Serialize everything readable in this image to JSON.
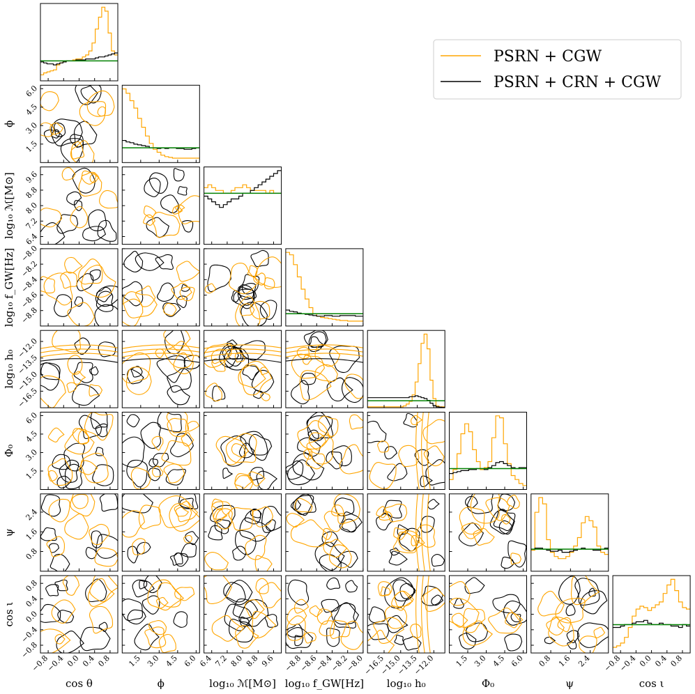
{
  "chart_data": {
    "type": "corner",
    "title": "",
    "legend": {
      "placement": "top-right",
      "entries": [
        {
          "label": "PSRN + CGW",
          "color": "#ffa500"
        },
        {
          "label": "PSRN + CRN + CGW",
          "color": "#000000"
        }
      ]
    },
    "prior_color": "#008000",
    "grid": false,
    "parameters": [
      {
        "key": "costheta",
        "label": "cos θ",
        "range": [
          -1.0,
          1.0
        ],
        "ticks": [
          "−0.8",
          "−0.4",
          "0.0",
          "0.4",
          "0.8"
        ],
        "tickvals": [
          -0.8,
          -0.4,
          0.0,
          0.4,
          0.8
        ]
      },
      {
        "key": "phi",
        "label": "ϕ",
        "range": [
          0.0,
          6.28
        ],
        "ticks": [
          "1.5",
          "3.0",
          "4.5",
          "6.0"
        ],
        "tickvals": [
          1.5,
          3.0,
          4.5,
          6.0
        ]
      },
      {
        "key": "logM",
        "label": "log₁₀ ℳ[M⊙]",
        "range": [
          6.0,
          10.0
        ],
        "ticks": [
          "6.4",
          "7.2",
          "8.0",
          "8.8",
          "9.6"
        ],
        "tickvals": [
          6.4,
          7.2,
          8.0,
          8.8,
          9.6
        ]
      },
      {
        "key": "logf",
        "label": "log₁₀ f_GW[Hz]",
        "range": [
          -9.0,
          -8.0
        ],
        "ticks": [
          "−8.8",
          "−8.6",
          "−8.4",
          "−8.2",
          "−8.0"
        ],
        "tickvals": [
          -8.8,
          -8.6,
          -8.4,
          -8.2,
          -8.0
        ]
      },
      {
        "key": "logh",
        "label": "log₁₀ h₀",
        "range": [
          -18.0,
          -11.0
        ],
        "ticks": [
          "−16.5",
          "−15.0",
          "−13.5",
          "−12.0"
        ],
        "tickvals": [
          -16.5,
          -15.0,
          -13.5,
          -12.0
        ]
      },
      {
        "key": "Phi0",
        "label": "Φ₀",
        "range": [
          0.0,
          6.28
        ],
        "ticks": [
          "1.5",
          "3.0",
          "4.5",
          "6.0"
        ],
        "tickvals": [
          1.5,
          3.0,
          4.5,
          6.0
        ]
      },
      {
        "key": "psi",
        "label": "ψ",
        "range": [
          0.0,
          3.14
        ],
        "ticks": [
          "0.8",
          "1.6",
          "2.4"
        ],
        "tickvals": [
          0.8,
          1.6,
          2.4
        ]
      },
      {
        "key": "cosiota",
        "label": "cos ι",
        "range": [
          -1.0,
          1.0
        ],
        "ticks": [
          "−0.8",
          "−0.4",
          "0.0",
          "0.4",
          "0.8"
        ],
        "tickvals": [
          -0.8,
          -0.4,
          0.0,
          0.4,
          0.8
        ]
      }
    ],
    "histograms": [
      {
        "param": "costheta",
        "orange": [
          0.3,
          0.4,
          0.45,
          0.5,
          0.55,
          0.8,
          0.9,
          0.95,
          1.0,
          1.0,
          1.05,
          1.1,
          1.1,
          1.2,
          1.3,
          1.5,
          1.9,
          2.6,
          3.2,
          3.7,
          3.5,
          2.4,
          1.5,
          1.3
        ],
        "black": [
          0.95,
          0.9,
          0.85,
          0.85,
          0.8,
          0.85,
          0.9,
          0.95,
          1.0,
          1.0,
          1.0,
          1.05,
          1.05,
          1.05,
          1.1,
          1.1,
          1.1,
          1.15,
          1.2,
          1.2,
          1.25,
          1.3,
          1.35,
          1.4
        ],
        "prior": 1.0
      },
      {
        "param": "phi",
        "orange": [
          5.0,
          4.7,
          4.2,
          3.7,
          3.0,
          2.4,
          1.8,
          1.3,
          0.9,
          0.7,
          0.5,
          0.4,
          0.35,
          0.3,
          0.3,
          0.3,
          0.3,
          0.3,
          0.3,
          0.3
        ],
        "black": [
          1.5,
          1.4,
          1.35,
          1.25,
          1.2,
          1.15,
          1.1,
          1.0,
          1.0,
          0.95,
          1.0,
          0.95,
          1.0,
          1.0,
          0.95,
          0.95,
          0.9,
          0.9,
          0.95,
          1.0
        ],
        "prior": 1.0
      },
      {
        "param": "logM",
        "orange": [
          1.0,
          1.05,
          1.0,
          0.95,
          0.95,
          0.9,
          0.9,
          0.95,
          1.0,
          1.0,
          1.05,
          1.0,
          0.95,
          0.95,
          0.95,
          0.95,
          0.9,
          0.95,
          0.9,
          0.9
        ],
        "black": [
          0.85,
          0.8,
          0.75,
          0.7,
          0.65,
          0.7,
          0.75,
          0.8,
          0.8,
          0.85,
          0.9,
          0.9,
          0.95,
          1.0,
          1.05,
          1.1,
          1.15,
          1.2,
          1.25,
          1.3
        ],
        "prior": 0.9
      },
      {
        "param": "logf",
        "orange": [
          6.0,
          5.8,
          5.0,
          4.0,
          3.0,
          2.2,
          1.5,
          1.0,
          0.8,
          0.7,
          0.65,
          0.6,
          0.55,
          0.5,
          0.45,
          0.45,
          0.4,
          0.4,
          0.4,
          0.4
        ],
        "black": [
          1.3,
          1.2,
          1.15,
          1.05,
          1.0,
          0.95,
          0.9,
          0.85,
          0.8,
          0.8,
          0.85,
          0.85,
          0.8,
          0.8,
          0.85,
          0.85,
          0.85,
          0.85,
          0.8,
          0.8
        ],
        "prior": 1.0
      },
      {
        "param": "logh",
        "orange": [
          0.05,
          0.05,
          0.05,
          0.05,
          0.05,
          0.05,
          0.05,
          0.05,
          0.05,
          0.05,
          0.05,
          0.05,
          0.1,
          0.2,
          0.35,
          0.7,
          1.4,
          2.4,
          3.5,
          4.0,
          3.2,
          1.5,
          0.5,
          0.1,
          0.05,
          0.05
        ],
        "black": [
          0.55,
          0.55,
          0.55,
          0.55,
          0.55,
          0.55,
          0.55,
          0.55,
          0.55,
          0.55,
          0.55,
          0.55,
          0.55,
          0.55,
          0.6,
          0.6,
          0.65,
          0.6,
          0.55,
          0.5,
          0.4,
          0.25,
          0.12,
          0.05,
          0.03,
          0.02
        ],
        "prior": 0.38
      },
      {
        "param": "Phi0",
        "orange": [
          0.5,
          1.0,
          1.8,
          2.8,
          3.3,
          2.9,
          2.0,
          1.4,
          1.0,
          1.1,
          1.4,
          2.6,
          3.7,
          3.6,
          2.3,
          1.3,
          0.7,
          0.5,
          0.3,
          0.2
        ],
        "black": [
          0.8,
          0.85,
          0.9,
          0.95,
          0.95,
          1.0,
          1.0,
          1.05,
          1.05,
          1.0,
          1.1,
          1.2,
          1.35,
          1.4,
          1.3,
          1.2,
          1.1,
          1.05,
          1.1,
          1.1
        ],
        "prior": 1.05
      },
      {
        "param": "psi",
        "orange": [
          1.0,
          2.8,
          3.5,
          3.2,
          1.5,
          0.9,
          0.7,
          0.6,
          0.6,
          0.7,
          0.9,
          1.2,
          1.6,
          2.3,
          2.6,
          2.4,
          2.1,
          1.2,
          0.9,
          0.8
        ],
        "black": [
          1.05,
          1.1,
          1.1,
          1.05,
          1.0,
          0.95,
          0.95,
          1.0,
          0.9,
          0.9,
          0.95,
          1.0,
          1.05,
          1.1,
          1.05,
          1.05,
          1.0,
          1.0,
          1.05,
          1.1
        ],
        "prior": 1.05
      },
      {
        "param": "cosiota",
        "orange": [
          0.2,
          0.25,
          0.35,
          0.55,
          0.9,
          1.3,
          1.55,
          1.65,
          1.6,
          1.5,
          1.6,
          1.7,
          1.8,
          2.1,
          2.4,
          2.6,
          2.2,
          1.8,
          1.6,
          1.55
        ],
        "black": [
          0.9,
          0.9,
          0.95,
          1.0,
          1.0,
          1.05,
          1.1,
          1.1,
          1.15,
          1.05,
          1.0,
          1.0,
          1.05,
          1.0,
          1.0,
          0.95,
          0.95,
          0.9,
          1.0,
          0.95
        ],
        "prior": 1.0
      }
    ]
  }
}
